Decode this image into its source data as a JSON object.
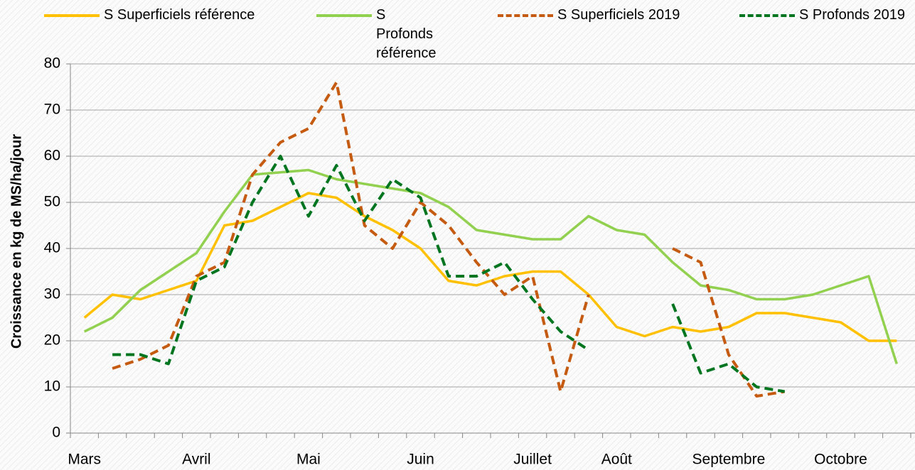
{
  "chart_data": {
    "type": "line",
    "ylabel": "Croissance en kg de MS/ha/jour",
    "categories": [
      "Mars",
      null,
      null,
      null,
      "Avril",
      null,
      null,
      null,
      "Mai",
      null,
      null,
      null,
      "Juin",
      null,
      null,
      null,
      "Juillet",
      null,
      null,
      "Août",
      null,
      null,
      null,
      "Septembre",
      null,
      null,
      null,
      "Octobre",
      null,
      null
    ],
    "series": [
      {
        "name": "S Superficiels référence",
        "color": "#ffc000",
        "dash": false,
        "values": [
          25,
          30,
          29,
          31,
          33,
          45,
          46,
          49,
          52,
          51,
          47,
          44,
          40,
          33,
          32,
          34,
          35,
          35,
          30,
          23,
          21,
          23,
          22,
          23,
          26,
          26,
          25,
          24,
          20,
          20
        ]
      },
      {
        "name": "S Profonds référence",
        "color": "#92d050",
        "dash": false,
        "values": [
          22,
          25,
          31,
          35,
          39,
          48,
          56,
          56.5,
          57,
          55,
          54,
          53,
          52,
          49,
          44,
          43,
          42,
          42,
          47,
          44,
          43,
          37,
          32,
          31,
          29,
          29,
          30,
          32,
          34,
          15
        ]
      },
      {
        "name": "S Superficiels 2019",
        "color": "#c55a11",
        "dash": true,
        "values": [
          null,
          14,
          16,
          19,
          34,
          37,
          56,
          63,
          66,
          76,
          45,
          40,
          50,
          45,
          37,
          30,
          34,
          9,
          30,
          null,
          null,
          40,
          37,
          17,
          8,
          9,
          null,
          null,
          null,
          null
        ]
      },
      {
        "name": "S Profonds 2019",
        "color": "#00751f",
        "dash": true,
        "values": [
          null,
          17,
          17,
          15,
          33,
          36,
          50,
          60,
          47,
          58,
          46,
          55,
          51,
          34,
          34,
          37,
          29,
          22,
          18,
          null,
          null,
          28,
          13,
          15,
          10,
          9,
          null,
          null,
          null,
          null
        ]
      }
    ],
    "ylim": [
      0,
      80
    ],
    "yticks": [
      0,
      10,
      20,
      30,
      40,
      50,
      60,
      70,
      80
    ],
    "grid": true
  }
}
